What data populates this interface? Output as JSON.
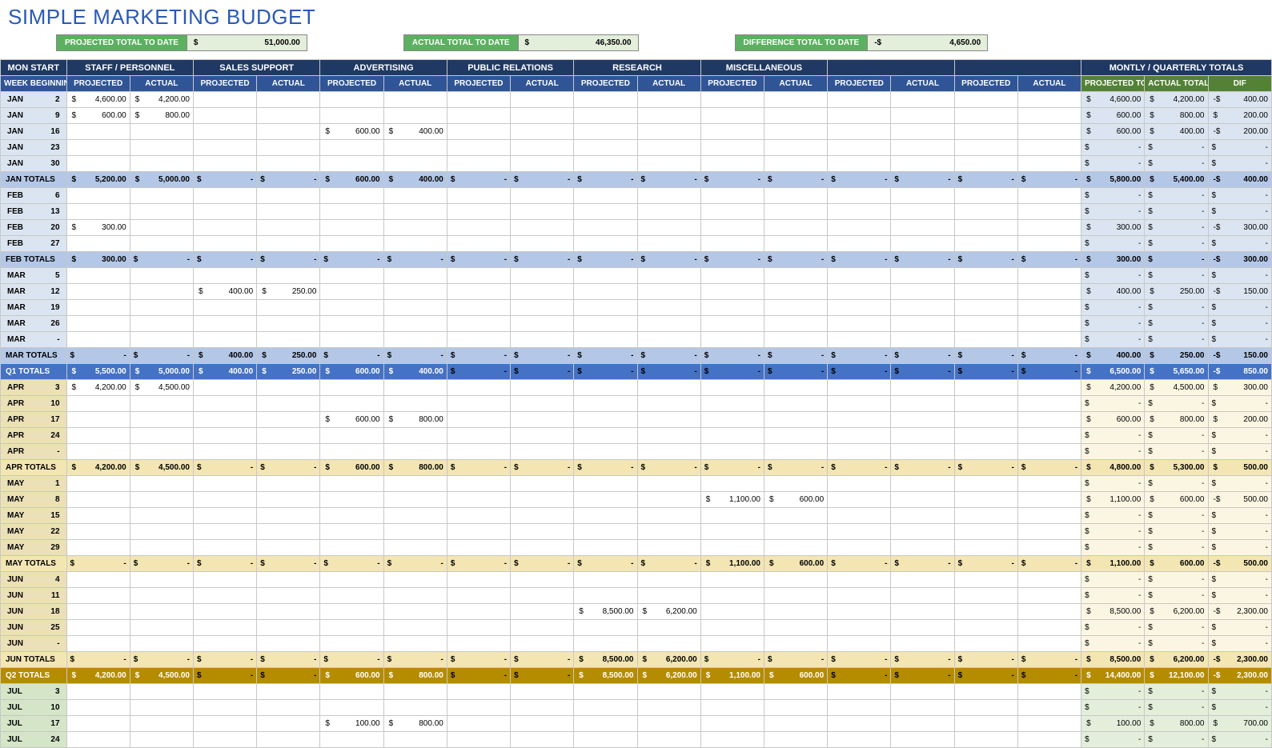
{
  "title": "SIMPLE MARKETING BUDGET",
  "summary": {
    "projected": {
      "label": "PROJECTED TOTAL TO DATE",
      "sign": "$",
      "value": "51,000.00"
    },
    "actual": {
      "label": "ACTUAL TOTAL TO DATE",
      "sign": "$",
      "value": "46,350.00"
    },
    "diff": {
      "label": "DIFFERENCE TOTAL TO DATE",
      "sign": "-$",
      "value": "4,650.00"
    }
  },
  "headers": {
    "monstart": "MON START",
    "week": "WEEK BEGINNING",
    "groups": [
      "STAFF / PERSONNEL",
      "SALES SUPPORT",
      "ADVERTISING",
      "PUBLIC RELATIONS",
      "RESEARCH",
      "MISCELLANEOUS",
      "",
      ""
    ],
    "sub": [
      "PROJECTED",
      "ACTUAL"
    ],
    "right_title": "MONTLY / QUARTERLY TOTALS",
    "right_sub": [
      "PROJECTED TOTALS",
      "ACTUAL TOTALS",
      "DIF"
    ]
  },
  "rows": [
    {
      "t": "w",
      "q": 1,
      "m": "JAN",
      "d": "2",
      "c": [
        "4,600.00",
        "4,200.00",
        "",
        "",
        "",
        "",
        "",
        "",
        "",
        "",
        "",
        "",
        "",
        "",
        "",
        ""
      ],
      "r": [
        "4,600.00",
        "4,200.00",
        "400.00"
      ],
      "rs": "-$"
    },
    {
      "t": "w",
      "q": 1,
      "m": "JAN",
      "d": "9",
      "c": [
        "600.00",
        "800.00",
        "",
        "",
        "",
        "",
        "",
        "",
        "",
        "",
        "",
        "",
        "",
        "",
        "",
        ""
      ],
      "r": [
        "600.00",
        "800.00",
        "200.00"
      ],
      "rs": "$"
    },
    {
      "t": "w",
      "q": 1,
      "m": "JAN",
      "d": "16",
      "c": [
        "",
        "",
        "",
        "",
        "600.00",
        "400.00",
        "",
        "",
        "",
        "",
        "",
        "",
        "",
        "",
        "",
        ""
      ],
      "r": [
        "600.00",
        "400.00",
        "200.00"
      ],
      "rs": "-$"
    },
    {
      "t": "w",
      "q": 1,
      "m": "JAN",
      "d": "23",
      "c": [
        "",
        "",
        "",
        "",
        "",
        "",
        "",
        "",
        "",
        "",
        "",
        "",
        "",
        "",
        "",
        ""
      ],
      "r": [
        "-",
        "-",
        "-"
      ],
      "rs": "$"
    },
    {
      "t": "w",
      "q": 1,
      "m": "JAN",
      "d": "30",
      "c": [
        "",
        "",
        "",
        "",
        "",
        "",
        "",
        "",
        "",
        "",
        "",
        "",
        "",
        "",
        "",
        ""
      ],
      "r": [
        "-",
        "-",
        "-"
      ],
      "rs": "$"
    },
    {
      "t": "mt",
      "q": 1,
      "label": "JAN TOTALS",
      "c": [
        "5,200.00",
        "5,000.00",
        "-",
        "-",
        "600.00",
        "400.00",
        "-",
        "-",
        "-",
        "-",
        "-",
        "-",
        "-",
        "-",
        "-",
        "-"
      ],
      "r": [
        "5,800.00",
        "5,400.00",
        "400.00"
      ],
      "rs": "-$"
    },
    {
      "t": "w",
      "q": 1,
      "m": "FEB",
      "d": "6",
      "c": [
        "",
        "",
        "",
        "",
        "",
        "",
        "",
        "",
        "",
        "",
        "",
        "",
        "",
        "",
        "",
        ""
      ],
      "r": [
        "-",
        "-",
        "-"
      ],
      "rs": "$"
    },
    {
      "t": "w",
      "q": 1,
      "m": "FEB",
      "d": "13",
      "c": [
        "",
        "",
        "",
        "",
        "",
        "",
        "",
        "",
        "",
        "",
        "",
        "",
        "",
        "",
        "",
        ""
      ],
      "r": [
        "-",
        "-",
        "-"
      ],
      "rs": "$"
    },
    {
      "t": "w",
      "q": 1,
      "m": "FEB",
      "d": "20",
      "c": [
        "300.00",
        "",
        "",
        "",
        "",
        "",
        "",
        "",
        "",
        "",
        "",
        "",
        "",
        "",
        "",
        ""
      ],
      "r": [
        "300.00",
        "-",
        "300.00"
      ],
      "rs": "-$"
    },
    {
      "t": "w",
      "q": 1,
      "m": "FEB",
      "d": "27",
      "c": [
        "",
        "",
        "",
        "",
        "",
        "",
        "",
        "",
        "",
        "",
        "",
        "",
        "",
        "",
        "",
        ""
      ],
      "r": [
        "-",
        "-",
        "-"
      ],
      "rs": "$"
    },
    {
      "t": "mt",
      "q": 1,
      "label": "FEB TOTALS",
      "c": [
        "300.00",
        "-",
        "-",
        "-",
        "-",
        "-",
        "-",
        "-",
        "-",
        "-",
        "-",
        "-",
        "-",
        "-",
        "-",
        "-"
      ],
      "r": [
        "300.00",
        "-",
        "300.00"
      ],
      "rs": "-$"
    },
    {
      "t": "w",
      "q": 1,
      "m": "MAR",
      "d": "5",
      "c": [
        "",
        "",
        "",
        "",
        "",
        "",
        "",
        "",
        "",
        "",
        "",
        "",
        "",
        "",
        "",
        ""
      ],
      "r": [
        "-",
        "-",
        "-"
      ],
      "rs": "$"
    },
    {
      "t": "w",
      "q": 1,
      "m": "MAR",
      "d": "12",
      "c": [
        "",
        "",
        "400.00",
        "250.00",
        "",
        "",
        "",
        "",
        "",
        "",
        "",
        "",
        "",
        "",
        "",
        ""
      ],
      "r": [
        "400.00",
        "250.00",
        "150.00"
      ],
      "rs": "-$"
    },
    {
      "t": "w",
      "q": 1,
      "m": "MAR",
      "d": "19",
      "c": [
        "",
        "",
        "",
        "",
        "",
        "",
        "",
        "",
        "",
        "",
        "",
        "",
        "",
        "",
        "",
        ""
      ],
      "r": [
        "-",
        "-",
        "-"
      ],
      "rs": "$"
    },
    {
      "t": "w",
      "q": 1,
      "m": "MAR",
      "d": "26",
      "c": [
        "",
        "",
        "",
        "",
        "",
        "",
        "",
        "",
        "",
        "",
        "",
        "",
        "",
        "",
        "",
        ""
      ],
      "r": [
        "-",
        "-",
        "-"
      ],
      "rs": "$"
    },
    {
      "t": "w",
      "q": 1,
      "m": "MAR",
      "d": "-",
      "c": [
        "",
        "",
        "",
        "",
        "",
        "",
        "",
        "",
        "",
        "",
        "",
        "",
        "",
        "",
        "",
        ""
      ],
      "r": [
        "-",
        "-",
        "-"
      ],
      "rs": "$"
    },
    {
      "t": "mt",
      "q": 1,
      "label": "MAR TOTALS",
      "c": [
        "-",
        "-",
        "400.00",
        "250.00",
        "-",
        "-",
        "-",
        "-",
        "-",
        "-",
        "-",
        "-",
        "-",
        "-",
        "-",
        "-"
      ],
      "r": [
        "400.00",
        "250.00",
        "150.00"
      ],
      "rs": "-$"
    },
    {
      "t": "qt",
      "q": 1,
      "label": "Q1 TOTALS",
      "c": [
        "5,500.00",
        "5,000.00",
        "400.00",
        "250.00",
        "600.00",
        "400.00",
        "-",
        "-",
        "-",
        "-",
        "-",
        "-",
        "-",
        "-",
        "-",
        "-"
      ],
      "r": [
        "6,500.00",
        "5,650.00",
        "850.00"
      ],
      "rs": "-$"
    },
    {
      "t": "w",
      "q": 2,
      "m": "APR",
      "d": "3",
      "c": [
        "4,200.00",
        "4,500.00",
        "",
        "",
        "",
        "",
        "",
        "",
        "",
        "",
        "",
        "",
        "",
        "",
        "",
        ""
      ],
      "r": [
        "4,200.00",
        "4,500.00",
        "300.00"
      ],
      "rs": "$"
    },
    {
      "t": "w",
      "q": 2,
      "m": "APR",
      "d": "10",
      "c": [
        "",
        "",
        "",
        "",
        "",
        "",
        "",
        "",
        "",
        "",
        "",
        "",
        "",
        "",
        "",
        ""
      ],
      "r": [
        "-",
        "-",
        "-"
      ],
      "rs": "$"
    },
    {
      "t": "w",
      "q": 2,
      "m": "APR",
      "d": "17",
      "c": [
        "",
        "",
        "",
        "",
        "600.00",
        "800.00",
        "",
        "",
        "",
        "",
        "",
        "",
        "",
        "",
        "",
        ""
      ],
      "r": [
        "600.00",
        "800.00",
        "200.00"
      ],
      "rs": "$"
    },
    {
      "t": "w",
      "q": 2,
      "m": "APR",
      "d": "24",
      "c": [
        "",
        "",
        "",
        "",
        "",
        "",
        "",
        "",
        "",
        "",
        "",
        "",
        "",
        "",
        "",
        ""
      ],
      "r": [
        "-",
        "-",
        "-"
      ],
      "rs": "$"
    },
    {
      "t": "w",
      "q": 2,
      "m": "APR",
      "d": "-",
      "c": [
        "",
        "",
        "",
        "",
        "",
        "",
        "",
        "",
        "",
        "",
        "",
        "",
        "",
        "",
        "",
        ""
      ],
      "r": [
        "-",
        "-",
        "-"
      ],
      "rs": "$"
    },
    {
      "t": "mt",
      "q": 2,
      "label": "APR TOTALS",
      "c": [
        "4,200.00",
        "4,500.00",
        "-",
        "-",
        "600.00",
        "800.00",
        "-",
        "-",
        "-",
        "-",
        "-",
        "-",
        "-",
        "-",
        "-",
        "-"
      ],
      "r": [
        "4,800.00",
        "5,300.00",
        "500.00"
      ],
      "rs": "$"
    },
    {
      "t": "w",
      "q": 2,
      "m": "MAY",
      "d": "1",
      "c": [
        "",
        "",
        "",
        "",
        "",
        "",
        "",
        "",
        "",
        "",
        "",
        "",
        "",
        "",
        "",
        ""
      ],
      "r": [
        "-",
        "-",
        "-"
      ],
      "rs": "$"
    },
    {
      "t": "w",
      "q": 2,
      "m": "MAY",
      "d": "8",
      "c": [
        "",
        "",
        "",
        "",
        "",
        "",
        "",
        "",
        "",
        "",
        "1,100.00",
        "600.00",
        "",
        "",
        "",
        ""
      ],
      "r": [
        "1,100.00",
        "600.00",
        "500.00"
      ],
      "rs": "-$"
    },
    {
      "t": "w",
      "q": 2,
      "m": "MAY",
      "d": "15",
      "c": [
        "",
        "",
        "",
        "",
        "",
        "",
        "",
        "",
        "",
        "",
        "",
        "",
        "",
        "",
        "",
        ""
      ],
      "r": [
        "-",
        "-",
        "-"
      ],
      "rs": "$"
    },
    {
      "t": "w",
      "q": 2,
      "m": "MAY",
      "d": "22",
      "c": [
        "",
        "",
        "",
        "",
        "",
        "",
        "",
        "",
        "",
        "",
        "",
        "",
        "",
        "",
        "",
        ""
      ],
      "r": [
        "-",
        "-",
        "-"
      ],
      "rs": "$"
    },
    {
      "t": "w",
      "q": 2,
      "m": "MAY",
      "d": "29",
      "c": [
        "",
        "",
        "",
        "",
        "",
        "",
        "",
        "",
        "",
        "",
        "",
        "",
        "",
        "",
        "",
        ""
      ],
      "r": [
        "-",
        "-",
        "-"
      ],
      "rs": "$"
    },
    {
      "t": "mt",
      "q": 2,
      "label": "MAY TOTALS",
      "c": [
        "-",
        "-",
        "-",
        "-",
        "-",
        "-",
        "-",
        "-",
        "-",
        "-",
        "1,100.00",
        "600.00",
        "-",
        "-",
        "-",
        "-"
      ],
      "r": [
        "1,100.00",
        "600.00",
        "500.00"
      ],
      "rs": "-$"
    },
    {
      "t": "w",
      "q": 2,
      "m": "JUN",
      "d": "4",
      "c": [
        "",
        "",
        "",
        "",
        "",
        "",
        "",
        "",
        "",
        "",
        "",
        "",
        "",
        "",
        "",
        ""
      ],
      "r": [
        "-",
        "-",
        "-"
      ],
      "rs": "$"
    },
    {
      "t": "w",
      "q": 2,
      "m": "JUN",
      "d": "11",
      "c": [
        "",
        "",
        "",
        "",
        "",
        "",
        "",
        "",
        "",
        "",
        "",
        "",
        "",
        "",
        "",
        ""
      ],
      "r": [
        "-",
        "-",
        "-"
      ],
      "rs": "$"
    },
    {
      "t": "w",
      "q": 2,
      "m": "JUN",
      "d": "18",
      "c": [
        "",
        "",
        "",
        "",
        "",
        "",
        "",
        "",
        "8,500.00",
        "6,200.00",
        "",
        "",
        "",
        "",
        "",
        ""
      ],
      "r": [
        "8,500.00",
        "6,200.00",
        "2,300.00"
      ],
      "rs": "-$"
    },
    {
      "t": "w",
      "q": 2,
      "m": "JUN",
      "d": "25",
      "c": [
        "",
        "",
        "",
        "",
        "",
        "",
        "",
        "",
        "",
        "",
        "",
        "",
        "",
        "",
        "",
        ""
      ],
      "r": [
        "-",
        "-",
        "-"
      ],
      "rs": "$"
    },
    {
      "t": "w",
      "q": 2,
      "m": "JUN",
      "d": "-",
      "c": [
        "",
        "",
        "",
        "",
        "",
        "",
        "",
        "",
        "",
        "",
        "",
        "",
        "",
        "",
        "",
        ""
      ],
      "r": [
        "-",
        "-",
        "-"
      ],
      "rs": "$"
    },
    {
      "t": "mt",
      "q": 2,
      "label": "JUN TOTALS",
      "c": [
        "-",
        "-",
        "-",
        "-",
        "-",
        "-",
        "-",
        "-",
        "8,500.00",
        "6,200.00",
        "-",
        "-",
        "-",
        "-",
        "-",
        "-"
      ],
      "r": [
        "8,500.00",
        "6,200.00",
        "2,300.00"
      ],
      "rs": "-$"
    },
    {
      "t": "qt",
      "q": 2,
      "label": "Q2 TOTALS",
      "c": [
        "4,200.00",
        "4,500.00",
        "-",
        "-",
        "600.00",
        "800.00",
        "-",
        "-",
        "8,500.00",
        "6,200.00",
        "1,100.00",
        "600.00",
        "-",
        "-",
        "-",
        "-"
      ],
      "r": [
        "14,400.00",
        "12,100.00",
        "2,300.00"
      ],
      "rs": "-$"
    },
    {
      "t": "w",
      "q": 3,
      "m": "JUL",
      "d": "3",
      "c": [
        "",
        "",
        "",
        "",
        "",
        "",
        "",
        "",
        "",
        "",
        "",
        "",
        "",
        "",
        "",
        ""
      ],
      "r": [
        "-",
        "-",
        "-"
      ],
      "rs": "$"
    },
    {
      "t": "w",
      "q": 3,
      "m": "JUL",
      "d": "10",
      "c": [
        "",
        "",
        "",
        "",
        "",
        "",
        "",
        "",
        "",
        "",
        "",
        "",
        "",
        "",
        "",
        ""
      ],
      "r": [
        "-",
        "-",
        "-"
      ],
      "rs": "$"
    },
    {
      "t": "w",
      "q": 3,
      "m": "JUL",
      "d": "17",
      "c": [
        "",
        "",
        "",
        "",
        "100.00",
        "800.00",
        "",
        "",
        "",
        "",
        "",
        "",
        "",
        "",
        "",
        ""
      ],
      "r": [
        "100.00",
        "800.00",
        "700.00"
      ],
      "rs": "$"
    },
    {
      "t": "w",
      "q": 3,
      "m": "JUL",
      "d": "24",
      "c": [
        "",
        "",
        "",
        "",
        "",
        "",
        "",
        "",
        "",
        "",
        "",
        "",
        "",
        "",
        "",
        ""
      ],
      "r": [
        "-",
        "-",
        "-"
      ],
      "rs": "$"
    }
  ],
  "colors": {
    "title": "#2a5ab4",
    "green": "#5db061",
    "greenDark": "#548235",
    "greenLight": "#e3eedb",
    "hdrDark": "#1f3864",
    "hdrMid": "#2f5597",
    "rowLabel": "#dbe5f1",
    "mtot1": "#b4c7e7",
    "mtot2": "#f3e6b3",
    "qtot1": "#4472c4",
    "qtot2": "#b58b00",
    "rightQ1": "#dbe5f1",
    "rightQ2": "#fbf6e2",
    "rightQ3": "#e3eedb"
  }
}
